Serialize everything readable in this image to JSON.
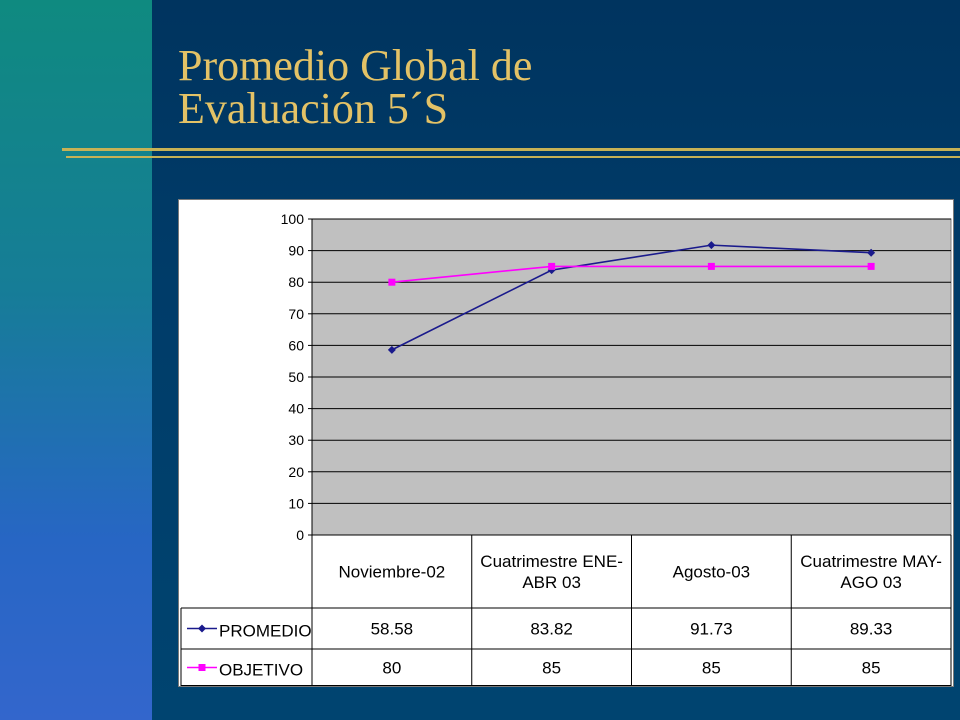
{
  "slide": {
    "title_line1": "Promedio Global de",
    "title_line2": "Evaluación  5´S"
  },
  "colors": {
    "title": "#e3c266",
    "background": "#003a66",
    "accent_rule": "#c7b255",
    "plot_area": "#c0c0c0",
    "promedio": "#1a1a8c",
    "objetivo": "#ff00ff"
  },
  "chart_data": {
    "type": "line",
    "categories": [
      [
        "Noviembre-02"
      ],
      [
        "Cuatrimestre ENE-",
        "ABR 03"
      ],
      [
        "Agosto-03"
      ],
      [
        "Cuatrimestre MAY-",
        "AGO 03"
      ]
    ],
    "series": [
      {
        "name": "PROMEDIO",
        "values": [
          58.58,
          83.82,
          91.73,
          89.33
        ],
        "labels": [
          "58.58",
          "83.82",
          "91.73",
          "89.33"
        ],
        "marker": "diamond",
        "color": "#1a1a8c"
      },
      {
        "name": "OBJETIVO",
        "values": [
          80,
          85,
          85,
          85
        ],
        "labels": [
          "80",
          "85",
          "85",
          "85"
        ],
        "marker": "square",
        "color": "#ff00ff"
      }
    ],
    "ylim": [
      0,
      100
    ],
    "yticks": [
      0,
      10,
      20,
      30,
      40,
      50,
      60,
      70,
      80,
      90,
      100
    ],
    "grid": true,
    "legend": "data-table",
    "title": "",
    "xlabel": "",
    "ylabel": ""
  }
}
